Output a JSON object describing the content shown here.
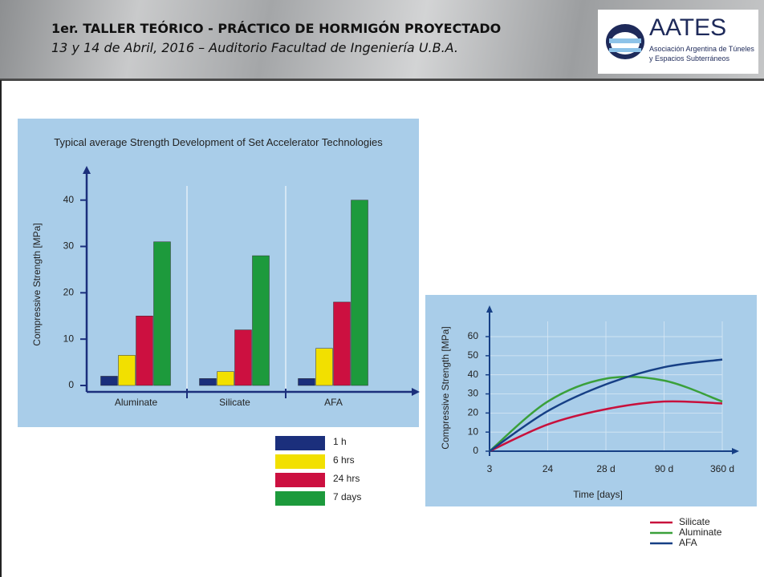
{
  "header": {
    "title": "1er. TALLER TEÓRICO - PRÁCTICO DE HORMIGÓN PROYECTADO",
    "subtitle": "13 y 14 de Abril, 2016 – Auditorio Facultad de Ingeniería U.B.A.",
    "logo": {
      "name": "AATES",
      "line1": "Asociación Argentina de Túneles",
      "line2": "y Espacios Subterráneos"
    }
  },
  "chart_data": [
    {
      "type": "bar",
      "title": "Typical average Strength Development of Set Accelerator Technologies",
      "y_label": "Compressive Strength [MPa]",
      "categories": [
        "Aluminate",
        "Silicate",
        "AFA"
      ],
      "series": [
        {
          "name": "1 h",
          "color": "#1b2f7c",
          "values": [
            2,
            1.5,
            1.5
          ]
        },
        {
          "name": "6 hrs",
          "color": "#f2e000",
          "values": [
            6.5,
            3,
            8
          ]
        },
        {
          "name": "24 hrs",
          "color": "#cc1040",
          "values": [
            15,
            12,
            18
          ]
        },
        {
          "name": "7 days",
          "color": "#1d9a3c",
          "values": [
            31,
            28,
            40
          ]
        }
      ],
      "ylim": [
        0,
        46
      ],
      "yticks": [
        0,
        10,
        20,
        30,
        40
      ],
      "grid": true
    },
    {
      "type": "line",
      "x_label": "Time [days]",
      "y_label": "Compressive Strength [MPa]",
      "categories": [
        "3",
        "24",
        "28 d",
        "90 d",
        "360 d"
      ],
      "series": [
        {
          "name": "Silicate",
          "color": "#c8103c",
          "values": [
            0,
            14,
            22,
            26,
            25
          ]
        },
        {
          "name": "Aluminate",
          "color": "#3aa03a",
          "values": [
            0,
            26,
            38,
            37,
            26
          ]
        },
        {
          "name": "AFA",
          "color": "#163f85",
          "values": [
            0,
            21,
            35,
            44,
            48
          ]
        }
      ],
      "ylim": [
        0,
        68
      ],
      "yticks": [
        0,
        10,
        20,
        30,
        40,
        50,
        60
      ],
      "grid": true
    }
  ]
}
